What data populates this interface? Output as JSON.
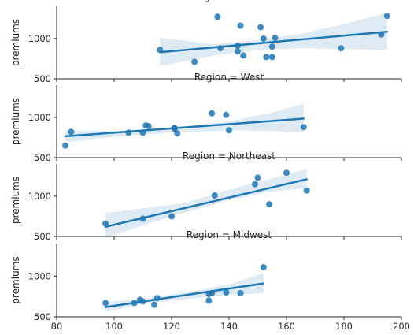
{
  "chart_data": {
    "type": "scatter",
    "ylabel": "premiums",
    "xlim": [
      80,
      200
    ],
    "x_ticks": [
      80,
      100,
      120,
      140,
      160,
      180,
      200
    ],
    "ylim": [
      500,
      1400
    ],
    "y_ticks": [
      500,
      1000
    ],
    "colors": {
      "points": "#1f77b4",
      "line": "#1f77b4",
      "band": "#1f77b4"
    },
    "facets": [
      {
        "title": "Region = South",
        "fit": {
          "x_start": 116,
          "x_end": 195,
          "y_start": 830,
          "y_end": 1085
        },
        "band": {
          "x": [
            116,
            135,
            150,
            165,
            180,
            195
          ],
          "lower": [
            660,
            790,
            860,
            880,
            870,
            860
          ],
          "upper": [
            1010,
            930,
            980,
            1060,
            1180,
            1320
          ]
        },
        "points": [
          {
            "x": 116,
            "y": 860
          },
          {
            "x": 128,
            "y": 710
          },
          {
            "x": 136,
            "y": 1270
          },
          {
            "x": 137,
            "y": 880
          },
          {
            "x": 143,
            "y": 840
          },
          {
            "x": 143,
            "y": 910
          },
          {
            "x": 144,
            "y": 1160
          },
          {
            "x": 145,
            "y": 790
          },
          {
            "x": 151,
            "y": 1140
          },
          {
            "x": 152,
            "y": 1000
          },
          {
            "x": 153,
            "y": 770
          },
          {
            "x": 155,
            "y": 770
          },
          {
            "x": 155,
            "y": 900
          },
          {
            "x": 156,
            "y": 1010
          },
          {
            "x": 179,
            "y": 880
          },
          {
            "x": 193,
            "y": 1050
          },
          {
            "x": 195,
            "y": 1280
          }
        ]
      },
      {
        "title": "Region = West",
        "fit": {
          "x_start": 83,
          "x_end": 166,
          "y_start": 765,
          "y_end": 985
        },
        "band": {
          "x": [
            83,
            100,
            120,
            140,
            155,
            166
          ],
          "lower": [
            690,
            760,
            810,
            840,
            830,
            810
          ],
          "upper": [
            840,
            830,
            870,
            950,
            1060,
            1170
          ]
        },
        "points": [
          {
            "x": 83,
            "y": 650
          },
          {
            "x": 85,
            "y": 820
          },
          {
            "x": 105,
            "y": 810
          },
          {
            "x": 110,
            "y": 810
          },
          {
            "x": 111,
            "y": 900
          },
          {
            "x": 112,
            "y": 890
          },
          {
            "x": 121,
            "y": 860
          },
          {
            "x": 121,
            "y": 870
          },
          {
            "x": 122,
            "y": 800
          },
          {
            "x": 134,
            "y": 1050
          },
          {
            "x": 139,
            "y": 1030
          },
          {
            "x": 140,
            "y": 840
          },
          {
            "x": 166,
            "y": 880
          }
        ]
      },
      {
        "title": "Region = Northeast",
        "fit": {
          "x_start": 97,
          "x_end": 167,
          "y_start": 620,
          "y_end": 1210
        },
        "band": {
          "x": [
            97,
            110,
            125,
            140,
            155,
            167
          ],
          "lower": [
            480,
            640,
            800,
            950,
            1060,
            1100
          ],
          "upper": [
            790,
            850,
            920,
            1080,
            1220,
            1340
          ]
        },
        "points": [
          {
            "x": 97,
            "y": 660
          },
          {
            "x": 110,
            "y": 720
          },
          {
            "x": 120,
            "y": 750
          },
          {
            "x": 135,
            "y": 1010
          },
          {
            "x": 149,
            "y": 1150
          },
          {
            "x": 150,
            "y": 1230
          },
          {
            "x": 154,
            "y": 900
          },
          {
            "x": 160,
            "y": 1290
          },
          {
            "x": 167,
            "y": 1070
          }
        ]
      },
      {
        "title": "Region = Midwest",
        "fit": {
          "x_start": 97,
          "x_end": 152,
          "y_start": 620,
          "y_end": 910
        },
        "band": {
          "x": [
            97,
            110,
            125,
            140,
            152
          ],
          "lower": [
            560,
            660,
            720,
            770,
            790
          ],
          "upper": [
            680,
            720,
            800,
            900,
            1040
          ]
        },
        "points": [
          {
            "x": 97,
            "y": 670
          },
          {
            "x": 107,
            "y": 670
          },
          {
            "x": 109,
            "y": 710
          },
          {
            "x": 110,
            "y": 690
          },
          {
            "x": 114,
            "y": 650
          },
          {
            "x": 115,
            "y": 730
          },
          {
            "x": 133,
            "y": 700
          },
          {
            "x": 133,
            "y": 780
          },
          {
            "x": 134,
            "y": 790
          },
          {
            "x": 139,
            "y": 800
          },
          {
            "x": 144,
            "y": 790
          },
          {
            "x": 152,
            "y": 1110
          }
        ]
      }
    ]
  }
}
